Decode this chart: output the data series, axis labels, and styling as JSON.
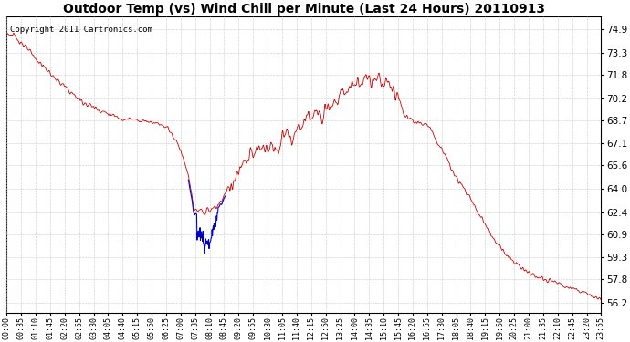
{
  "title": "Outdoor Temp (vs) Wind Chill per Minute (Last 24 Hours) 20110913",
  "copyright_text": "Copyright 2011 Cartronics.com",
  "background_color": "#ffffff",
  "plot_background": "#ffffff",
  "grid_color": "#c8c8c8",
  "line_color_red": "#cc0000",
  "line_color_blue": "#0000cc",
  "y_ticks": [
    56.2,
    57.8,
    59.3,
    60.9,
    62.4,
    64.0,
    65.6,
    67.1,
    68.7,
    70.2,
    71.8,
    73.3,
    74.9
  ],
  "y_min": 55.5,
  "y_max": 75.8,
  "x_tick_labels": [
    "00:00",
    "00:35",
    "01:10",
    "01:45",
    "02:20",
    "02:55",
    "03:30",
    "04:05",
    "04:40",
    "05:15",
    "05:50",
    "06:25",
    "07:00",
    "07:35",
    "08:10",
    "08:45",
    "09:20",
    "09:55",
    "10:30",
    "11:05",
    "11:40",
    "12:15",
    "12:50",
    "13:25",
    "14:00",
    "14:35",
    "15:10",
    "15:45",
    "16:20",
    "16:55",
    "17:30",
    "18:05",
    "18:40",
    "19:15",
    "19:50",
    "20:25",
    "21:00",
    "21:35",
    "22:10",
    "22:45",
    "23:20",
    "23:55"
  ],
  "title_fontsize": 10,
  "tick_fontsize": 6,
  "copyright_fontsize": 6.5,
  "figwidth": 6.9,
  "figheight": 3.75,
  "dpi": 100
}
